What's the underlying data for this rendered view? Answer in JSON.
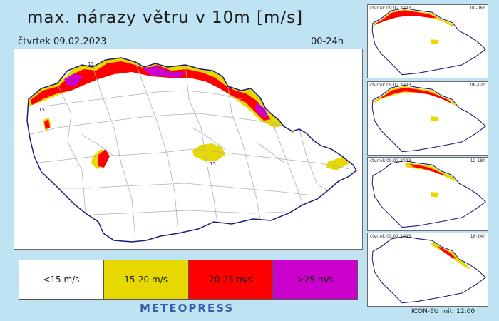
{
  "header": {
    "title": "max. nárazy větru v 10m [m/s]",
    "date": "čtvrtek 09.02.2023",
    "range": "00-24h"
  },
  "map": {
    "contour_labels": [
      "15",
      "15",
      "15"
    ],
    "colors": {
      "border": "#1c1c7a",
      "district": "#b0b0b0",
      "yellow": "#e6d800",
      "red": "#ff0000",
      "magenta": "#cc00cc"
    }
  },
  "legend": [
    {
      "label": "<15 m/s",
      "color": "#ffffff"
    },
    {
      "label": "15-20 m/s",
      "color": "#e6d800"
    },
    {
      "label": "20-25 m/s",
      "color": "#ff0000"
    },
    {
      "label": ">25 m/s",
      "color": "#cc00cc"
    }
  ],
  "thumbnails": [
    {
      "date": "čtvrtek 09.02.2023",
      "range": "00-06h"
    },
    {
      "date": "čtvrtek 09.02.2023",
      "range": "06-12h"
    },
    {
      "date": "čtvrtek 09.02.2023",
      "range": "12-18h"
    },
    {
      "date": "čtvrtek 09.02.2023",
      "range": "18-24h"
    }
  ],
  "footer": {
    "brand": "METEOPRESS",
    "model": "ICON-EU",
    "init": "init:  12:00"
  }
}
